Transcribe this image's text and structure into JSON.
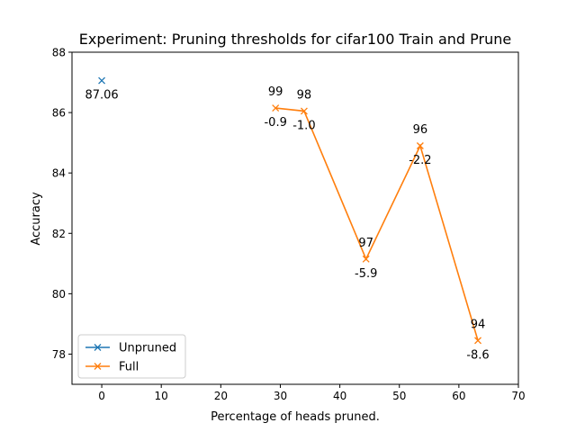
{
  "chart_data": {
    "type": "line",
    "title": "Experiment: Pruning thresholds for cifar100 Train and Prune",
    "xlabel": "Percentage of heads pruned.",
    "ylabel": "Accuracy",
    "xlim": [
      -5,
      70
    ],
    "ylim": [
      77,
      88
    ],
    "xticks": [
      0,
      10,
      20,
      30,
      40,
      50,
      60,
      70
    ],
    "yticks": [
      78,
      80,
      82,
      84,
      86,
      88
    ],
    "grid": false,
    "legend_position": "lower-left",
    "series": [
      {
        "name": "Unpruned",
        "color": "#1f77b4",
        "marker": "x",
        "points": [
          {
            "x": 0,
            "y": 87.06,
            "label_below": "87.06"
          }
        ]
      },
      {
        "name": "Full",
        "color": "#ff7f0e",
        "marker": "x",
        "points": [
          {
            "x": 29.2,
            "y": 86.15,
            "label_above": "99",
            "label_below": "-0.9"
          },
          {
            "x": 34.0,
            "y": 86.05,
            "label_above": "98",
            "label_below": "-1.0"
          },
          {
            "x": 44.4,
            "y": 81.15,
            "label_above": "97",
            "label_below": "-5.9"
          },
          {
            "x": 53.5,
            "y": 84.9,
            "label_above": "96",
            "label_below": "-2.2"
          },
          {
            "x": 63.2,
            "y": 78.45,
            "label_above": "94",
            "label_below": "-8.6"
          }
        ]
      }
    ]
  }
}
